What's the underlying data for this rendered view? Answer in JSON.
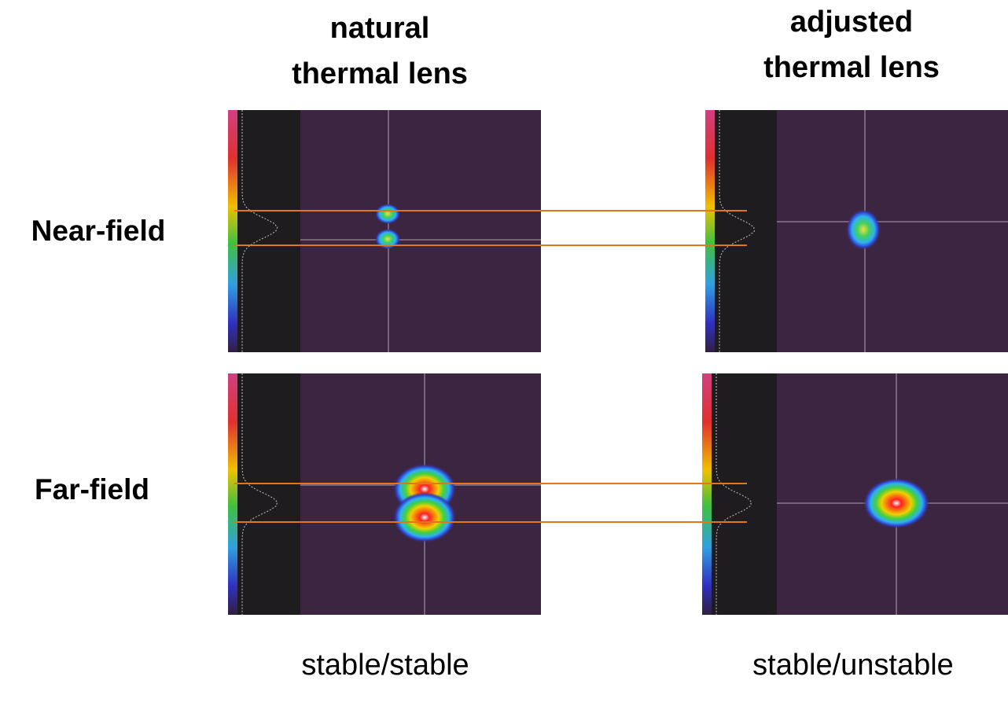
{
  "columns": [
    {
      "title": [
        "natural",
        "thermal lens"
      ],
      "caption": "stable/stable"
    },
    {
      "title": [
        "adjusted",
        "thermal lens"
      ],
      "caption": "stable/unstable"
    }
  ],
  "rows": [
    "Near-field",
    "Far-field"
  ]
}
